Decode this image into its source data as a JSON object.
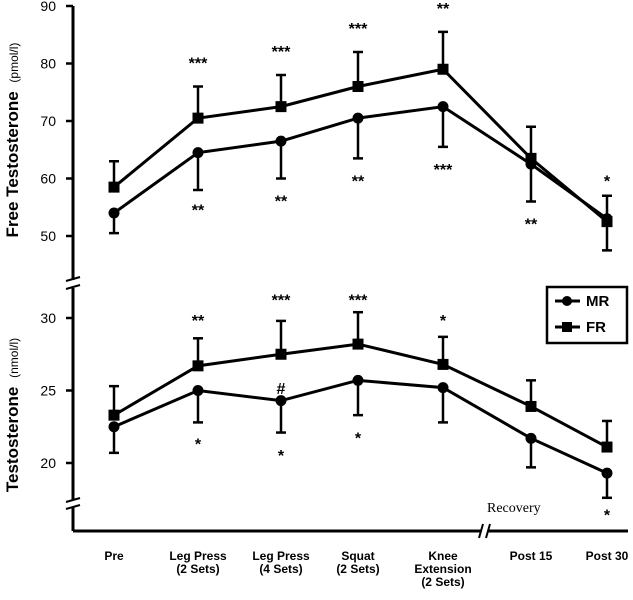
{
  "chart_data": [
    {
      "type": "line",
      "ylabel": "Free Testosterone",
      "yunit": "(pmol/l)",
      "ylim": [
        45,
        90
      ],
      "yticks": [
        50,
        60,
        70,
        80,
        90
      ],
      "categories": [
        "Pre",
        "Leg Press\n(2 Sets)",
        "Leg Press\n(4 Sets)",
        "Squat\n(2 Sets)",
        "Knee\nExtension\n(2 Sets)",
        "Post 15",
        "Post 30"
      ],
      "series": [
        {
          "name": "MR",
          "values": [
            54,
            64.5,
            66.5,
            70.5,
            72.5,
            62.5,
            53
          ],
          "err": [
            3.5,
            6.5,
            6.5,
            7,
            7,
            6.5,
            5.5
          ],
          "err_dir": "down"
        },
        {
          "name": "FR",
          "values": [
            58.5,
            70.5,
            72.5,
            76,
            79,
            63.5,
            52.5
          ],
          "err": [
            4.5,
            5.5,
            5.5,
            6,
            6.5,
            5.5,
            4.5
          ],
          "err_dir": "up"
        }
      ],
      "annotations": [
        {
          "text": "***",
          "x": 1,
          "y": 80.5
        },
        {
          "text": "***",
          "x": 2,
          "y": 82.5
        },
        {
          "text": "***",
          "x": 3,
          "y": 86.5
        },
        {
          "text": "**",
          "x": 4,
          "y": 90
        },
        {
          "text": "*",
          "x": 6,
          "y": 60
        },
        {
          "text": "**",
          "x": 1,
          "y": 55
        },
        {
          "text": "**",
          "x": 2,
          "y": 56.5
        },
        {
          "text": "**",
          "x": 3,
          "y": 60
        },
        {
          "text": "***",
          "x": 4,
          "y": 62
        },
        {
          "text": "**",
          "x": 5,
          "y": 52.5
        }
      ]
    },
    {
      "type": "line",
      "ylabel": "Testosterone",
      "yunit": "(nmol/l)",
      "ylim": [
        18,
        31
      ],
      "yticks": [
        20,
        25,
        30
      ],
      "categories": [
        "Pre",
        "Leg Press\n(2 Sets)",
        "Leg Press\n(4 Sets)",
        "Squat\n(2 Sets)",
        "Knee\nExtension\n(2 Sets)",
        "Post 15",
        "Post 30"
      ],
      "series": [
        {
          "name": "MR",
          "values": [
            22.5,
            25,
            24.3,
            25.7,
            25.2,
            21.7,
            19.3
          ],
          "err": [
            1.8,
            2.2,
            2.2,
            2.4,
            2.4,
            2,
            1.7
          ],
          "err_dir": "down"
        },
        {
          "name": "FR",
          "values": [
            23.3,
            26.7,
            27.5,
            28.2,
            26.8,
            23.9,
            21.1
          ],
          "err": [
            2,
            1.9,
            2.3,
            2.2,
            1.9,
            1.8,
            1.8
          ],
          "err_dir": "up"
        }
      ],
      "annotations": [
        {
          "text": "**",
          "x": 1,
          "y": 30
        },
        {
          "text": "***",
          "x": 2,
          "y": 31.4
        },
        {
          "text": "***",
          "x": 3,
          "y": 31.4
        },
        {
          "text": "*",
          "x": 4,
          "y": 30
        },
        {
          "text": "#",
          "x": 2,
          "y": 25.3
        },
        {
          "text": "*",
          "x": 1,
          "y": 21.5
        },
        {
          "text": "*",
          "x": 2,
          "y": 20.7
        },
        {
          "text": "*",
          "x": 3,
          "y": 21.9
        },
        {
          "text": "*",
          "x": 6,
          "y": 16.6
        }
      ]
    }
  ],
  "legend": {
    "items": [
      "MR",
      "FR"
    ]
  },
  "recovery_label": "Recovery"
}
